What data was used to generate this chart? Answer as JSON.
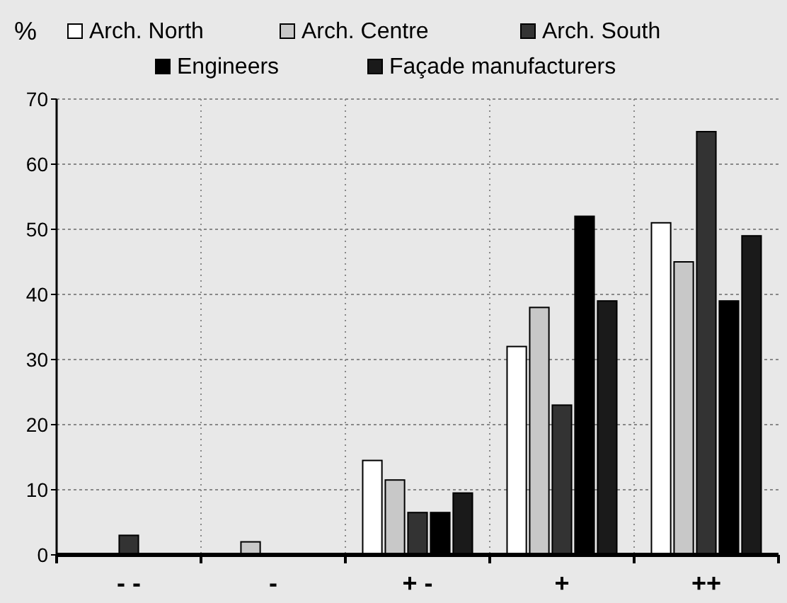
{
  "chart_data": {
    "type": "bar",
    "ylabel": "%",
    "categories": [
      "- -",
      "-",
      "+ -",
      "+",
      "++"
    ],
    "series": [
      {
        "name": "Arch. North",
        "color": "#ffffff",
        "values": [
          0,
          0,
          14.5,
          32,
          51
        ]
      },
      {
        "name": "Arch. Centre",
        "color": "#c8c8c8",
        "values": [
          0,
          2,
          11.5,
          38,
          45
        ]
      },
      {
        "name": "Arch. South",
        "color": "#333333",
        "values": [
          3,
          0,
          6.5,
          23,
          65
        ]
      },
      {
        "name": "Engineers",
        "color": "#000000",
        "values": [
          0,
          0,
          6.5,
          52,
          39
        ]
      },
      {
        "name": "Façade manufacturers",
        "color": "#1a1a1a",
        "values": [
          0,
          0,
          9.5,
          39,
          49
        ]
      }
    ],
    "ylim": [
      0,
      70
    ],
    "yticks": [
      0,
      10,
      20,
      30,
      40,
      50,
      60,
      70
    ],
    "grid": true,
    "legend": "top"
  }
}
